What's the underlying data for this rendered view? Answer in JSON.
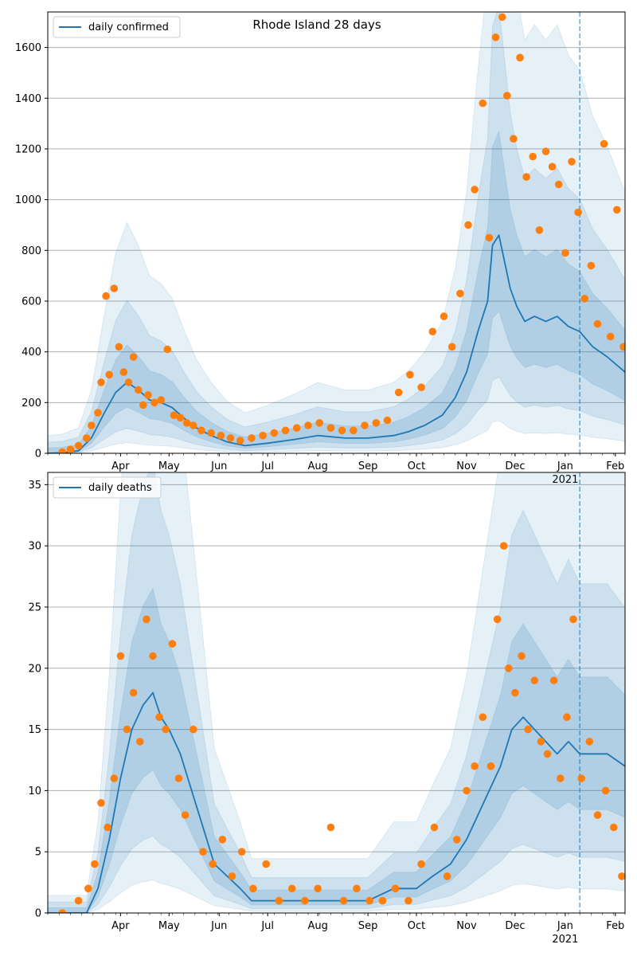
{
  "chart_data": [
    {
      "type": "line",
      "title": "Rhode Island 28 days",
      "xlabel": "",
      "ylabel": "",
      "legend": {
        "position": "top-left",
        "entries": [
          "daily confirmed"
        ]
      },
      "grid": "horizontal",
      "xlim": [
        "2020-03-01",
        "2021-02-21"
      ],
      "ylim": [
        0,
        1740
      ],
      "yticks": [
        0,
        200,
        400,
        600,
        800,
        1000,
        1200,
        1400,
        1600
      ],
      "xticks": [
        "Apr",
        "May",
        "Jun",
        "Jul",
        "Aug",
        "Sep",
        "Oct",
        "Nov",
        "Dec",
        "Jan",
        "Feb"
      ],
      "xtick_year_label": "2021",
      "forecast_start": "2021-01-24",
      "colors": {
        "line": "#1f77b4",
        "points": "#ff7f0e",
        "band": "#1f77b4"
      },
      "series": [
        {
          "name": "daily confirmed",
          "kind": "model_line",
          "x": [
            "2020-03-01",
            "2020-03-10",
            "2020-03-20",
            "2020-03-28",
            "2020-04-05",
            "2020-04-12",
            "2020-04-19",
            "2020-04-26",
            "2020-05-03",
            "2020-05-10",
            "2020-05-17",
            "2020-05-24",
            "2020-06-01",
            "2020-06-10",
            "2020-06-20",
            "2020-07-01",
            "2020-07-15",
            "2020-08-01",
            "2020-08-15",
            "2020-09-01",
            "2020-09-15",
            "2020-10-01",
            "2020-10-10",
            "2020-10-20",
            "2020-10-31",
            "2020-11-08",
            "2020-11-15",
            "2020-11-22",
            "2020-11-28",
            "2020-12-01",
            "2020-12-05",
            "2020-12-08",
            "2020-12-12",
            "2020-12-16",
            "2020-12-21",
            "2020-12-27",
            "2021-01-03",
            "2021-01-10",
            "2021-01-17",
            "2021-01-24",
            "2021-02-01",
            "2021-02-10",
            "2021-02-21"
          ],
          "y": [
            0,
            2,
            10,
            60,
            160,
            240,
            280,
            250,
            210,
            200,
            180,
            140,
            100,
            70,
            45,
            30,
            40,
            55,
            70,
            60,
            60,
            70,
            85,
            110,
            150,
            220,
            320,
            480,
            600,
            820,
            860,
            770,
            650,
            580,
            520,
            540,
            520,
            540,
            500,
            480,
            420,
            380,
            320
          ]
        },
        {
          "name": "",
          "kind": "observed_points",
          "x": [
            "2020-03-10",
            "2020-03-15",
            "2020-03-20",
            "2020-03-25",
            "2020-03-28",
            "2020-04-01",
            "2020-04-03",
            "2020-04-06",
            "2020-04-08",
            "2020-04-11",
            "2020-04-14",
            "2020-04-17",
            "2020-04-20",
            "2020-04-23",
            "2020-04-26",
            "2020-04-29",
            "2020-05-02",
            "2020-05-06",
            "2020-05-10",
            "2020-05-14",
            "2020-05-18",
            "2020-05-22",
            "2020-05-26",
            "2020-05-30",
            "2020-06-04",
            "2020-06-10",
            "2020-06-16",
            "2020-06-22",
            "2020-06-28",
            "2020-07-05",
            "2020-07-12",
            "2020-07-19",
            "2020-07-26",
            "2020-08-02",
            "2020-08-09",
            "2020-08-16",
            "2020-08-23",
            "2020-08-30",
            "2020-09-06",
            "2020-09-13",
            "2020-09-20",
            "2020-09-27",
            "2020-10-04",
            "2020-10-11",
            "2020-10-18",
            "2020-10-25",
            "2020-11-01",
            "2020-11-06",
            "2020-11-11",
            "2020-11-16",
            "2020-11-20",
            "2020-11-25",
            "2020-11-29",
            "2020-12-03",
            "2020-12-07",
            "2020-12-10",
            "2020-12-14",
            "2020-12-18",
            "2020-12-22",
            "2020-12-26",
            "2020-12-30",
            "2021-01-03",
            "2021-01-07",
            "2021-01-11",
            "2021-01-15",
            "2021-01-19",
            "2021-01-23",
            "2021-01-27",
            "2021-01-31",
            "2021-02-04",
            "2021-02-08",
            "2021-02-12",
            "2021-02-16",
            "2021-02-20"
          ],
          "y": [
            5,
            15,
            30,
            60,
            110,
            160,
            280,
            620,
            310,
            650,
            420,
            320,
            280,
            380,
            250,
            190,
            230,
            200,
            210,
            410,
            150,
            140,
            120,
            110,
            90,
            80,
            70,
            60,
            50,
            60,
            70,
            80,
            90,
            100,
            110,
            120,
            100,
            90,
            90,
            110,
            120,
            130,
            240,
            310,
            260,
            480,
            540,
            420,
            630,
            900,
            1040,
            1380,
            850,
            1640,
            1720,
            1410,
            1240,
            1560,
            1090,
            1170,
            880,
            1190,
            1130,
            1060,
            790,
            1150,
            950,
            610,
            740,
            510,
            1220,
            460,
            960,
            420
          ]
        }
      ]
    },
    {
      "type": "line",
      "title": "",
      "xlabel": "",
      "ylabel": "",
      "legend": {
        "position": "top-left",
        "entries": [
          "daily deaths"
        ]
      },
      "grid": "horizontal",
      "xlim": [
        "2020-03-01",
        "2021-02-21"
      ],
      "ylim": [
        0,
        36
      ],
      "yticks": [
        0,
        5,
        10,
        15,
        20,
        25,
        30,
        35
      ],
      "xticks": [
        "Apr",
        "May",
        "Jun",
        "Jul",
        "Aug",
        "Sep",
        "Oct",
        "Nov",
        "Dec",
        "Jan",
        "Feb"
      ],
      "xtick_year_label": "2021",
      "forecast_start": "2021-01-24",
      "colors": {
        "line": "#1f77b4",
        "points": "#ff7f0e",
        "band": "#1f77b4"
      },
      "series": [
        {
          "name": "daily deaths",
          "kind": "model_line",
          "x": [
            "2020-03-01",
            "2020-03-15",
            "2020-03-25",
            "2020-04-01",
            "2020-04-08",
            "2020-04-15",
            "2020-04-22",
            "2020-04-29",
            "2020-05-05",
            "2020-05-10",
            "2020-05-15",
            "2020-05-22",
            "2020-05-29",
            "2020-06-05",
            "2020-06-12",
            "2020-06-20",
            "2020-06-28",
            "2020-07-05",
            "2020-07-15",
            "2020-08-01",
            "2020-08-15",
            "2020-09-01",
            "2020-09-15",
            "2020-10-01",
            "2020-10-15",
            "2020-10-25",
            "2020-11-05",
            "2020-11-15",
            "2020-11-22",
            "2020-11-29",
            "2020-12-06",
            "2020-12-13",
            "2020-12-20",
            "2020-12-27",
            "2021-01-03",
            "2021-01-10",
            "2021-01-17",
            "2021-01-24",
            "2021-02-01",
            "2021-02-10",
            "2021-02-21"
          ],
          "y": [
            0,
            0,
            0,
            2,
            6,
            11,
            15,
            17,
            18,
            16,
            15,
            13,
            10,
            7,
            4,
            3,
            2,
            1,
            1,
            1,
            1,
            1,
            1,
            2,
            2,
            3,
            4,
            6,
            8,
            10,
            12,
            15,
            16,
            15,
            14,
            13,
            14,
            13,
            13,
            13,
            12
          ]
        },
        {
          "name": "",
          "kind": "observed_points",
          "x": [
            "2020-03-10",
            "2020-03-20",
            "2020-03-26",
            "2020-03-30",
            "2020-04-03",
            "2020-04-07",
            "2020-04-11",
            "2020-04-15",
            "2020-04-19",
            "2020-04-23",
            "2020-04-27",
            "2020-05-01",
            "2020-05-05",
            "2020-05-09",
            "2020-05-13",
            "2020-05-17",
            "2020-05-21",
            "2020-05-25",
            "2020-05-30",
            "2020-06-05",
            "2020-06-11",
            "2020-06-17",
            "2020-06-23",
            "2020-06-29",
            "2020-07-06",
            "2020-07-14",
            "2020-07-22",
            "2020-07-30",
            "2020-08-07",
            "2020-08-15",
            "2020-08-23",
            "2020-08-31",
            "2020-09-08",
            "2020-09-16",
            "2020-09-24",
            "2020-10-02",
            "2020-10-10",
            "2020-10-18",
            "2020-10-26",
            "2020-11-03",
            "2020-11-09",
            "2020-11-15",
            "2020-11-20",
            "2020-11-25",
            "2020-11-30",
            "2020-12-04",
            "2020-12-08",
            "2020-12-11",
            "2020-12-15",
            "2020-12-19",
            "2020-12-23",
            "2020-12-27",
            "2020-12-31",
            "2021-01-04",
            "2021-01-08",
            "2021-01-12",
            "2021-01-16",
            "2021-01-20",
            "2021-01-25",
            "2021-01-30",
            "2021-02-04",
            "2021-02-09",
            "2021-02-14",
            "2021-02-19"
          ],
          "y": [
            0,
            1,
            2,
            4,
            9,
            7,
            11,
            21,
            15,
            18,
            14,
            24,
            21,
            16,
            15,
            22,
            11,
            8,
            15,
            5,
            4,
            6,
            3,
            5,
            2,
            4,
            1,
            2,
            1,
            2,
            7,
            1,
            2,
            1,
            1,
            2,
            1,
            4,
            7,
            3,
            6,
            10,
            12,
            16,
            12,
            24,
            30,
            20,
            18,
            21,
            15,
            19,
            14,
            13,
            19,
            11,
            16,
            24,
            11,
            14,
            8,
            10,
            7,
            3
          ]
        }
      ]
    }
  ]
}
